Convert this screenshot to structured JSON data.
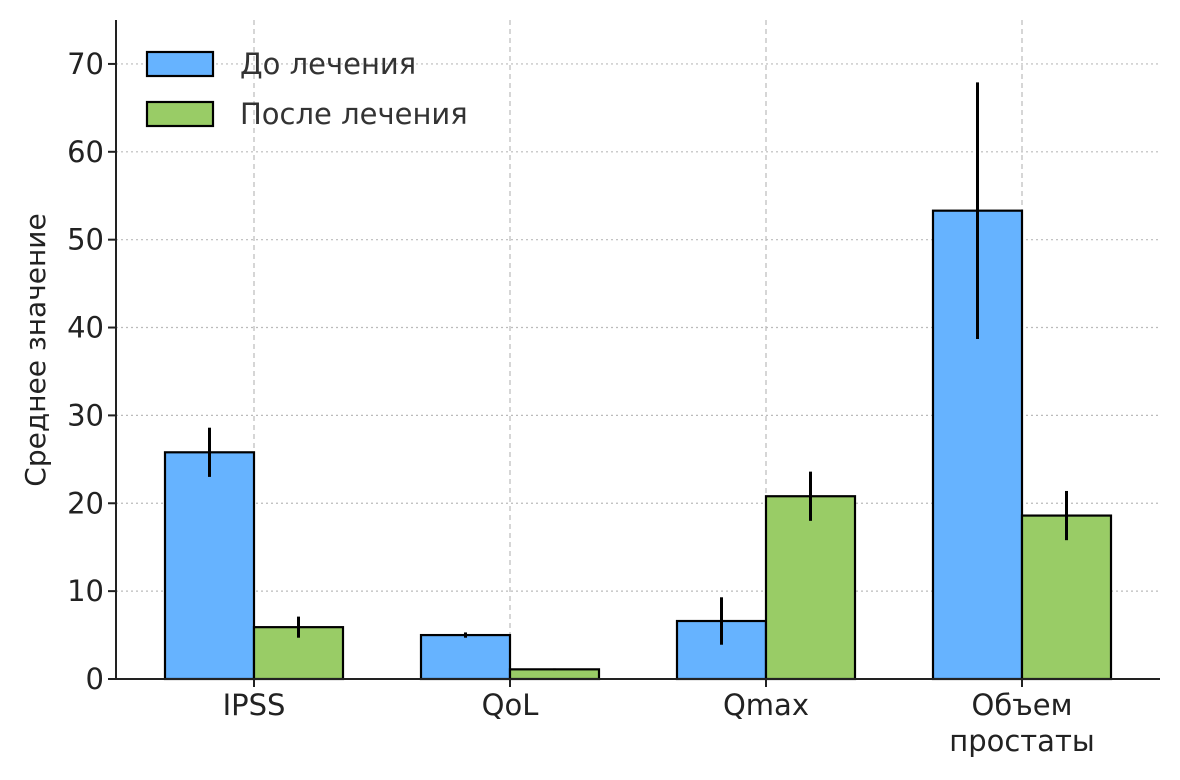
{
  "chart_data": {
    "type": "bar",
    "title": "",
    "xlabel": "",
    "ylabel": "Среднее значение",
    "categories": [
      [
        "IPSS"
      ],
      [
        "QoL"
      ],
      [
        "Qmax"
      ],
      [
        "Объем",
        "простаты"
      ]
    ],
    "series": [
      {
        "name": "До лечения",
        "color": "#66b3ff",
        "values": [
          25.8,
          5.0,
          6.6,
          53.3
        ],
        "errors": [
          2.8,
          0.3,
          2.7,
          14.6
        ]
      },
      {
        "name": "После лечения",
        "color": "#99cc66",
        "values": [
          5.9,
          1.1,
          20.8,
          18.6
        ],
        "errors": [
          1.2,
          0.1,
          2.8,
          2.8
        ]
      }
    ],
    "ylim": [
      0,
      75
    ],
    "yticks": [
      0,
      10,
      20,
      30,
      40,
      50,
      60,
      70
    ],
    "grid": true,
    "legend_position": "top-left"
  }
}
